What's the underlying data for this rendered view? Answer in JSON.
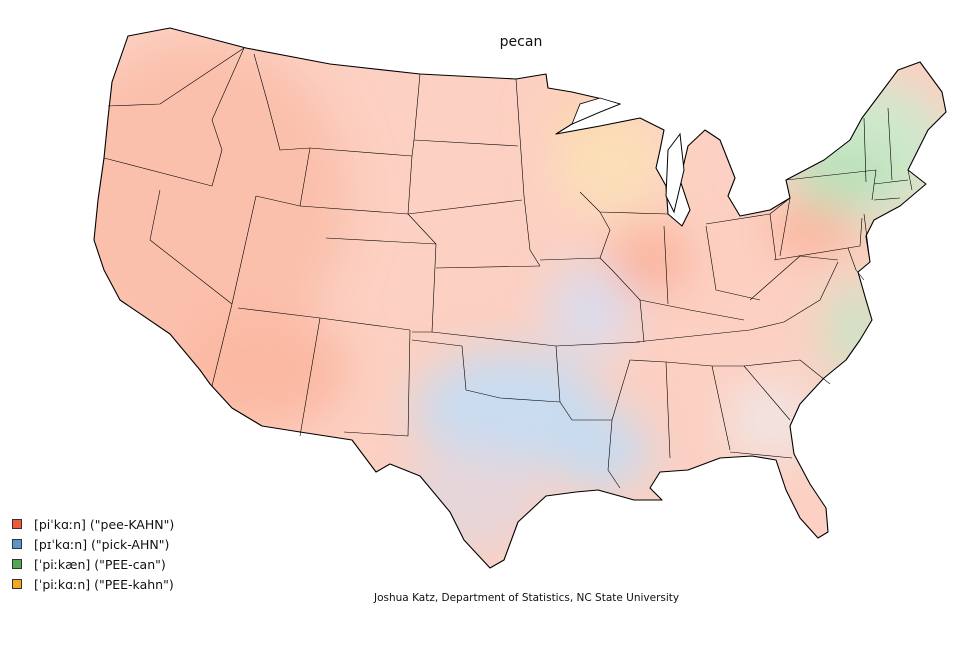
{
  "map": {
    "title": "pecan",
    "credit": "Joshua Katz, Department of Statistics, NC State University",
    "colors": {
      "pee_kahn": "#fb8f72",
      "pick_ahn": "#8fb9e3",
      "pee_can": "#86c78a",
      "pee_kahn_stressed": "#f7c07a",
      "border": "#000000"
    },
    "legend": [
      {
        "label": "[piˈkɑːn] (\"pee-KAHN\")",
        "color": "#ef5a3a"
      },
      {
        "label": "[pɪˈkɑːn] (\"pick-AHN\")",
        "color": "#5b93cf"
      },
      {
        "label": "[ˈpiːkæn] (\"PEE-can\")",
        "color": "#52a852"
      },
      {
        "label": "[ˈpiːkɑːn] (\"PEE-kahn\")",
        "color": "#f5a623"
      }
    ]
  }
}
